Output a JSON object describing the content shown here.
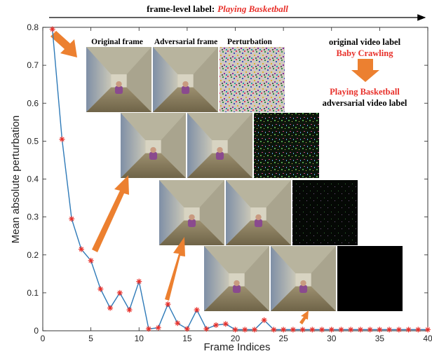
{
  "chart_data": {
    "type": "line",
    "xlabel": "Frame Indices",
    "ylabel": "Mean absolute perturbation",
    "xlim": [
      0,
      40
    ],
    "ylim": [
      0,
      0.8
    ],
    "xticks": [
      "0",
      "5",
      "10",
      "15",
      "20",
      "25",
      "30",
      "35",
      "40"
    ],
    "yticks": [
      "0",
      "0.1",
      "0.2",
      "0.3",
      "0.4",
      "0.5",
      "0.6",
      "0.7",
      "0.8"
    ],
    "line_color": "#2e7ab8",
    "marker_color": "#e8302a",
    "series": [
      {
        "x": [
          1,
          2,
          3,
          4,
          5,
          6,
          7,
          8,
          9,
          10,
          11,
          12,
          13,
          14,
          15,
          16,
          17,
          18,
          19,
          20,
          21,
          22,
          23,
          24,
          25,
          26,
          27,
          28,
          29,
          30,
          31,
          32,
          33,
          34,
          35,
          36,
          37,
          38,
          39,
          40
        ],
        "values": [
          0.795,
          0.505,
          0.295,
          0.215,
          0.185,
          0.11,
          0.06,
          0.1,
          0.055,
          0.13,
          0.005,
          0.008,
          0.07,
          0.02,
          0.005,
          0.055,
          0.005,
          0.015,
          0.018,
          0.003,
          0.003,
          0.003,
          0.028,
          0.003,
          0.003,
          0.003,
          0.003,
          0.003,
          0.003,
          0.003,
          0.003,
          0.003,
          0.003,
          0.003,
          0.003,
          0.003,
          0.003,
          0.003,
          0.003,
          0.003
        ]
      }
    ]
  },
  "header": {
    "prefix": "frame-level label:",
    "label": "Playing Basketball"
  },
  "inset_headers": {
    "original": "Original frame",
    "adversarial": "Adversarial frame",
    "perturbation": "Perturbation"
  },
  "video_labels": {
    "original_caption": "original video label",
    "original_value": "Baby Crawling",
    "adversarial_value": "Playing Basketball",
    "adversarial_caption": "adversarial video label"
  },
  "colors": {
    "accent_red": "#e8302a",
    "arrow_orange": "#ec8030"
  }
}
